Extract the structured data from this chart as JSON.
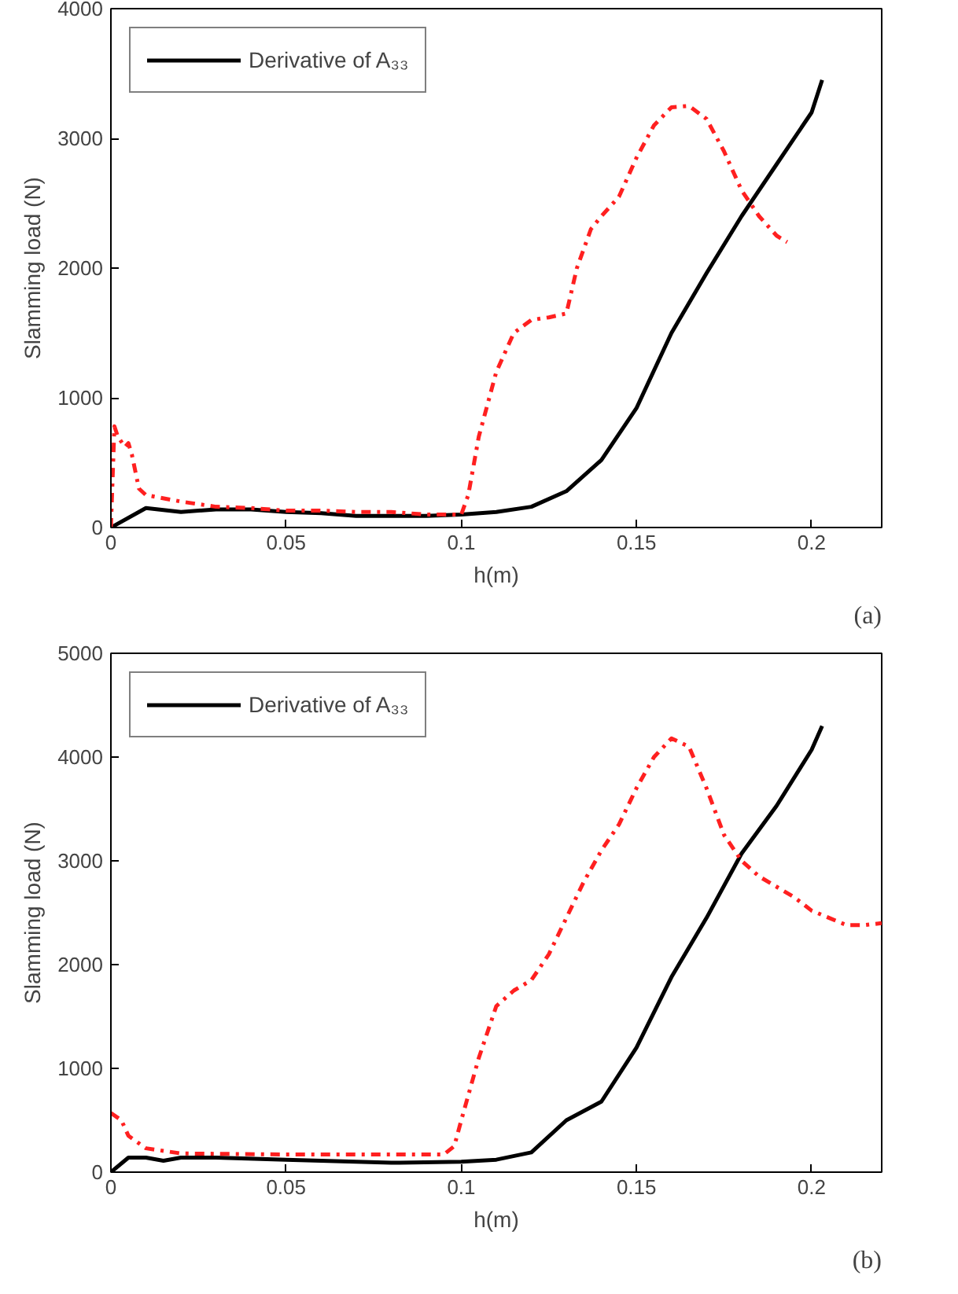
{
  "chart_data": [
    {
      "type": "line",
      "xlabel": "h(m)",
      "ylabel": "Slamming load (N)",
      "xlim": [
        0,
        0.22
      ],
      "ylim": [
        0,
        4000
      ],
      "xticks": [
        0,
        0.05,
        0.1,
        0.15,
        0.2
      ],
      "yticks": [
        0,
        1000,
        2000,
        3000,
        4000
      ],
      "grid": false,
      "legend": "top left",
      "annotations": [
        "(a)"
      ],
      "series": [
        {
          "name": "Derivative of A₃₃",
          "color": "#000000",
          "line_style": "solid",
          "x": [
            0,
            0.01,
            0.02,
            0.03,
            0.04,
            0.05,
            0.06,
            0.07,
            0.08,
            0.09,
            0.1,
            0.11,
            0.12,
            0.13,
            0.14,
            0.15,
            0.16,
            0.17,
            0.18,
            0.19,
            0.2,
            0.203
          ],
          "values": [
            0,
            150,
            120,
            140,
            140,
            120,
            110,
            90,
            90,
            90,
            100,
            120,
            160,
            280,
            520,
            920,
            1500,
            1960,
            2400,
            2800,
            3200,
            3450
          ]
        },
        {
          "color": "#ff2020",
          "line_style": "dashdot",
          "x": [
            0,
            0.001,
            0.002,
            0.004,
            0.005,
            0.006,
            0.008,
            0.01,
            0.02,
            0.03,
            0.04,
            0.05,
            0.06,
            0.07,
            0.08,
            0.09,
            0.1,
            0.102,
            0.105,
            0.11,
            0.115,
            0.118,
            0.12,
            0.125,
            0.13,
            0.133,
            0.137,
            0.14,
            0.145,
            0.15,
            0.155,
            0.16,
            0.165,
            0.17,
            0.175,
            0.18,
            0.185,
            0.19,
            0.193
          ],
          "values": [
            0,
            780,
            700,
            620,
            650,
            560,
            300,
            250,
            200,
            160,
            150,
            130,
            130,
            120,
            120,
            100,
            100,
            250,
            700,
            1200,
            1500,
            1560,
            1600,
            1620,
            1650,
            2000,
            2300,
            2400,
            2550,
            2850,
            3100,
            3240,
            3250,
            3150,
            2900,
            2600,
            2400,
            2250,
            2200
          ]
        }
      ]
    },
    {
      "type": "line",
      "xlabel": "h(m)",
      "ylabel": "Slamming load (N)",
      "xlim": [
        0,
        0.22
      ],
      "ylim": [
        0,
        5000
      ],
      "xticks": [
        0,
        0.05,
        0.1,
        0.15,
        0.2
      ],
      "yticks": [
        0,
        1000,
        2000,
        3000,
        4000,
        5000
      ],
      "grid": false,
      "legend": "top left",
      "annotations": [
        "(b)"
      ],
      "series": [
        {
          "name": "Derivative of A₃₃",
          "color": "#000000",
          "line_style": "solid",
          "x": [
            0,
            0.005,
            0.01,
            0.015,
            0.02,
            0.03,
            0.05,
            0.08,
            0.1,
            0.11,
            0.12,
            0.13,
            0.14,
            0.15,
            0.16,
            0.17,
            0.18,
            0.19,
            0.2,
            0.203
          ],
          "values": [
            0,
            140,
            140,
            110,
            140,
            140,
            120,
            90,
            100,
            120,
            190,
            500,
            680,
            1200,
            1880,
            2450,
            3070,
            3530,
            4070,
            4300
          ]
        },
        {
          "color": "#ff2020",
          "line_style": "dashdot",
          "x": [
            0,
            0.003,
            0.005,
            0.01,
            0.02,
            0.05,
            0.09,
            0.095,
            0.098,
            0.1,
            0.105,
            0.11,
            0.115,
            0.12,
            0.125,
            0.13,
            0.135,
            0.14,
            0.145,
            0.15,
            0.155,
            0.16,
            0.165,
            0.17,
            0.175,
            0.18,
            0.185,
            0.19,
            0.195,
            0.2,
            0.205,
            0.21,
            0.215,
            0.22
          ],
          "values": [
            570,
            500,
            350,
            230,
            180,
            170,
            170,
            170,
            250,
            500,
            1100,
            1600,
            1750,
            1850,
            2100,
            2450,
            2800,
            3100,
            3350,
            3700,
            4000,
            4180,
            4100,
            3700,
            3250,
            3000,
            2850,
            2750,
            2650,
            2520,
            2450,
            2380,
            2380,
            2400
          ]
        }
      ]
    }
  ]
}
